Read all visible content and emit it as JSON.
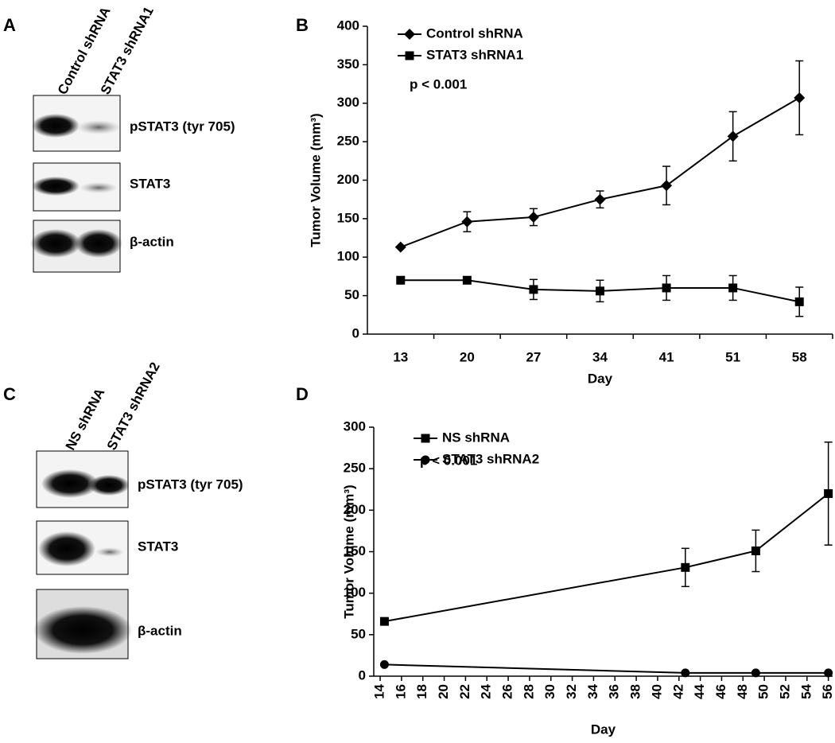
{
  "panel_labels": [
    "A",
    "B",
    "C",
    "D"
  ],
  "blots": [
    {
      "lanes": [
        "Control shRNA",
        "STAT3 shRNA1"
      ],
      "bands": [
        "pSTAT3 (tyr 705)",
        "STAT3",
        "β-actin"
      ]
    },
    {
      "lanes": [
        "NS shRNA",
        "STAT3 shRNA2"
      ],
      "bands": [
        "pSTAT3 (tyr 705)",
        "STAT3",
        "β-actin"
      ]
    }
  ],
  "chart_data": [
    {
      "type": "line",
      "xlabel": "Day",
      "ylabel": "Tumor Volume (mm³)",
      "annotation": "p < 0.001",
      "categories": [
        "13",
        "20",
        "27",
        "34",
        "41",
        "51",
        "58"
      ],
      "series": [
        {
          "name": "Control shRNA",
          "color": "#000000",
          "marker": "diamond",
          "values": [
            113,
            146,
            152,
            175,
            193,
            257,
            307
          ],
          "errors": [
            0,
            13,
            11,
            11,
            25,
            32,
            48
          ]
        },
        {
          "name": "STAT3 shRNA1",
          "color": "#000000",
          "marker": "square",
          "values": [
            70,
            70,
            58,
            56,
            60,
            60,
            42
          ],
          "errors": [
            0,
            0,
            13,
            14,
            16,
            16,
            19
          ]
        }
      ],
      "ylim": [
        0,
        400
      ],
      "yticks": [
        0,
        50,
        100,
        150,
        200,
        250,
        300,
        350,
        400
      ],
      "legend": "upper left"
    },
    {
      "type": "line",
      "xlabel": "Day",
      "ylabel": "Tumor Volume (mm³)",
      "annotation": "p < 0.001",
      "x": [
        14.4,
        42.6,
        49.2,
        56
      ],
      "series": [
        {
          "name": "NS shRNA",
          "color": "#000000",
          "marker": "square",
          "values": [
            66,
            131,
            151,
            220
          ],
          "errors": [
            0,
            23,
            25,
            62
          ]
        },
        {
          "name": "STAT3 shRNA2",
          "color": "#000000",
          "marker": "circle",
          "values": [
            14,
            4,
            4,
            4
          ],
          "errors": [
            0,
            0,
            0,
            0
          ]
        }
      ],
      "xlim": [
        13.4,
        56.4
      ],
      "xticks": [
        14,
        16,
        18,
        20,
        22,
        24,
        26,
        28,
        30,
        32,
        34,
        36,
        38,
        40,
        42,
        44,
        46,
        48,
        50,
        52,
        54,
        56
      ],
      "ylim": [
        0,
        300
      ],
      "yticks": [
        0,
        50,
        100,
        150,
        200,
        250,
        300
      ],
      "legend": "upper left"
    }
  ]
}
